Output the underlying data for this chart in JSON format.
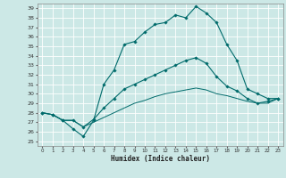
{
  "xlabel": "Humidex (Indice chaleur)",
  "bg_color": "#cce8e6",
  "grid_color": "#ffffff",
  "line_color": "#006b6b",
  "xlim": [
    -0.5,
    23.5
  ],
  "ylim": [
    24.5,
    39.5
  ],
  "xticks": [
    0,
    1,
    2,
    3,
    4,
    5,
    6,
    7,
    8,
    9,
    10,
    11,
    12,
    13,
    14,
    15,
    16,
    17,
    18,
    19,
    20,
    21,
    22,
    23
  ],
  "yticks": [
    25,
    26,
    27,
    28,
    29,
    30,
    31,
    32,
    33,
    34,
    35,
    36,
    37,
    38,
    39
  ],
  "line1_x": [
    0,
    1,
    2,
    3,
    4,
    5,
    6,
    7,
    8,
    9,
    10,
    11,
    12,
    13,
    14,
    15,
    16,
    17,
    18,
    19,
    20,
    21,
    22,
    23
  ],
  "line1_y": [
    28.0,
    27.8,
    27.2,
    26.3,
    25.5,
    27.2,
    31.0,
    32.5,
    35.2,
    35.5,
    36.5,
    37.3,
    37.5,
    38.3,
    38.0,
    39.2,
    38.5,
    37.5,
    35.2,
    33.5,
    30.5,
    30.0,
    29.5,
    29.5
  ],
  "line2_x": [
    0,
    1,
    2,
    3,
    4,
    5,
    6,
    7,
    8,
    9,
    10,
    11,
    12,
    13,
    14,
    15,
    16,
    17,
    18,
    19,
    20,
    21,
    22,
    23
  ],
  "line2_y": [
    28.0,
    27.8,
    27.2,
    27.2,
    26.5,
    27.3,
    28.5,
    29.5,
    30.5,
    31.0,
    31.5,
    32.0,
    32.5,
    33.0,
    33.5,
    33.8,
    33.2,
    31.8,
    30.8,
    30.3,
    29.5,
    29.0,
    29.2,
    29.5
  ],
  "line3_x": [
    0,
    1,
    2,
    3,
    4,
    5,
    6,
    7,
    8,
    9,
    10,
    11,
    12,
    13,
    14,
    15,
    16,
    17,
    18,
    19,
    20,
    21,
    22,
    23
  ],
  "line3_y": [
    28.0,
    27.8,
    27.2,
    27.2,
    26.5,
    27.0,
    27.5,
    28.0,
    28.5,
    29.0,
    29.3,
    29.7,
    30.0,
    30.2,
    30.4,
    30.6,
    30.4,
    30.0,
    29.8,
    29.5,
    29.2,
    29.0,
    29.0,
    29.5
  ]
}
